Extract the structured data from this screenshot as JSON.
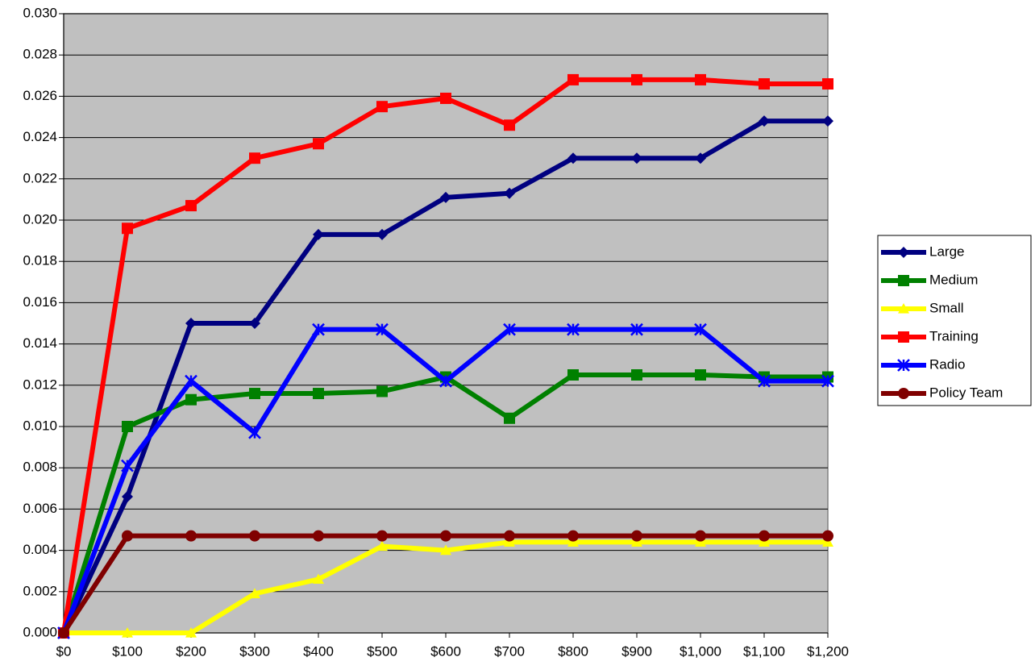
{
  "chart_data": {
    "type": "line",
    "categories": [
      "$0",
      "$100",
      "$200",
      "$300",
      "$400",
      "$500",
      "$600",
      "$700",
      "$800",
      "$900",
      "$1,000",
      "$1,100",
      "$1,200"
    ],
    "series": [
      {
        "name": "Large",
        "color": "#000080",
        "marker": "diamond",
        "values": [
          0,
          0.0066,
          0.015,
          0.015,
          0.0193,
          0.0193,
          0.0211,
          0.0213,
          0.023,
          0.023,
          0.023,
          0.0248,
          0.0248
        ]
      },
      {
        "name": "Medium",
        "color": "#008000",
        "marker": "square",
        "values": [
          0,
          0.01,
          0.0113,
          0.0116,
          0.0116,
          0.0117,
          0.0124,
          0.0104,
          0.0125,
          0.0125,
          0.0125,
          0.0124,
          0.0124
        ]
      },
      {
        "name": "Small",
        "color": "#ffff00",
        "marker": "triangle",
        "values": [
          0,
          0,
          0,
          0.0019,
          0.0026,
          0.0042,
          0.004,
          0.0044,
          0.0044,
          0.0044,
          0.0044,
          0.0044,
          0.0044
        ]
      },
      {
        "name": "Training",
        "color": "#ff0000",
        "marker": "square",
        "values": [
          0,
          0.0196,
          0.0207,
          0.023,
          0.0237,
          0.0255,
          0.0259,
          0.0246,
          0.0268,
          0.0268,
          0.0268,
          0.0266,
          0.0266
        ]
      },
      {
        "name": "Radio",
        "color": "#0000ff",
        "marker": "asterisk",
        "values": [
          0,
          0.0081,
          0.0122,
          0.0097,
          0.0147,
          0.0147,
          0.0122,
          0.0147,
          0.0147,
          0.0147,
          0.0147,
          0.0122,
          0.0122
        ]
      },
      {
        "name": "Policy Team",
        "color": "#800000",
        "marker": "circle",
        "values": [
          0,
          0.0047,
          0.0047,
          0.0047,
          0.0047,
          0.0047,
          0.0047,
          0.0047,
          0.0047,
          0.0047,
          0.0047,
          0.0047,
          0.0047
        ]
      }
    ],
    "ylim": [
      0,
      0.03
    ],
    "yticks": [
      {
        "value": 0,
        "label": "0.000"
      },
      {
        "value": 0.002,
        "label": "0.002"
      },
      {
        "value": 0.004,
        "label": "0.004"
      },
      {
        "value": 0.006,
        "label": "0.006"
      },
      {
        "value": 0.008,
        "label": "0.008"
      },
      {
        "value": 0.01,
        "label": "0.010"
      },
      {
        "value": 0.012,
        "label": "0.012"
      },
      {
        "value": 0.014,
        "label": "0.014"
      },
      {
        "value": 0.016,
        "label": "0.016"
      },
      {
        "value": 0.018,
        "label": "0.018"
      },
      {
        "value": 0.02,
        "label": "0.020"
      },
      {
        "value": 0.022,
        "label": "0.022"
      },
      {
        "value": 0.024,
        "label": "0.024"
      },
      {
        "value": 0.026,
        "label": "0.026"
      },
      {
        "value": 0.028,
        "label": "0.028"
      },
      {
        "value": 0.03,
        "label": "0.030"
      }
    ],
    "grid": true,
    "legend": "right"
  }
}
